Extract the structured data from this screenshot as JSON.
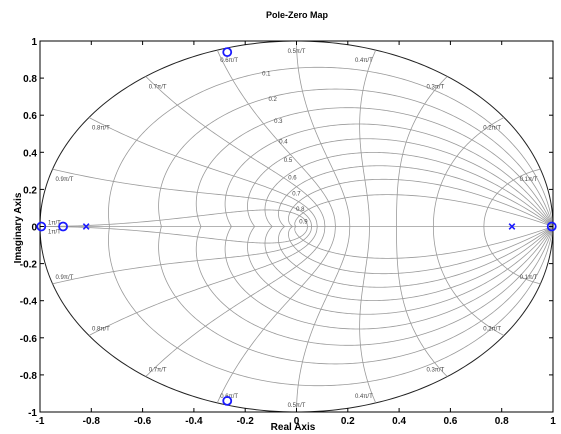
{
  "chart_data": {
    "type": "scatter",
    "title": "Pole-Zero Map",
    "xlabel": "Real Axis",
    "ylabel": "Imaginary Axis",
    "xlim": [
      -1,
      1
    ],
    "ylim": [
      -1,
      1
    ],
    "x_ticks": [
      "-1",
      "-0.8",
      "-0.6",
      "-0.4",
      "-0.2",
      "0",
      "0.2",
      "0.4",
      "0.6",
      "0.8",
      "1"
    ],
    "y_ticks": [
      "1",
      "0.8",
      "0.6",
      "0.4",
      "0.2",
      "0",
      "-0.2",
      "-0.4",
      "-0.6",
      "-0.8",
      "-1"
    ],
    "grid": true,
    "zeros": [
      {
        "x": -0.27,
        "y": 0.94
      },
      {
        "x": -0.27,
        "y": -0.94
      },
      {
        "x": -0.995,
        "y": 0
      },
      {
        "x": -0.91,
        "y": 0
      },
      {
        "x": 0.995,
        "y": 0
      }
    ],
    "poles": [
      {
        "x": -0.82,
        "y": 0
      },
      {
        "x": 0.84,
        "y": 0
      }
    ],
    "damping_labels": [
      "0.1",
      "0.2",
      "0.3",
      "0.4",
      "0.5",
      "0.6",
      "0.7",
      "0.8",
      "0.9"
    ],
    "frequency_labels": [
      {
        "f": 0.1,
        "text": "0.1π/T"
      },
      {
        "f": 0.2,
        "text": "0.2π/T"
      },
      {
        "f": 0.3,
        "text": "0.3π/T"
      },
      {
        "f": 0.4,
        "text": "0.4π/T"
      },
      {
        "f": 0.5,
        "text": "0.5π/T"
      },
      {
        "f": 0.6,
        "text": "0.6π/T"
      },
      {
        "f": 0.7,
        "text": "0.7π/T"
      },
      {
        "f": 0.8,
        "text": "0.8π/T"
      },
      {
        "f": 0.9,
        "text": "0.9π/T"
      },
      {
        "f": 1.0,
        "text": "1π/T"
      }
    ]
  }
}
